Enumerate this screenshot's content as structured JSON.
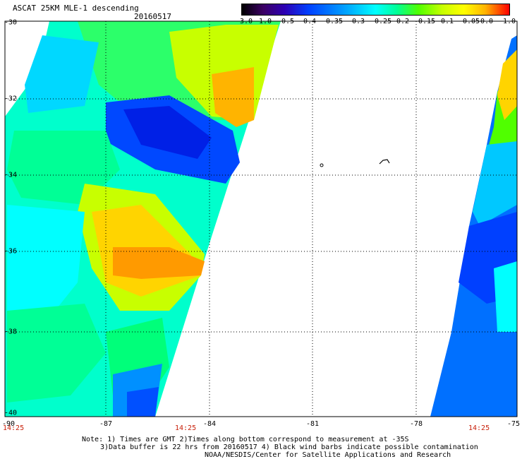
{
  "header": {
    "title": "ASCAT 25KM MLE-1 descending",
    "date": "20160517"
  },
  "colorbar": {
    "labels": [
      "-3.0",
      "-1.0",
      "-0.5",
      "-0.4",
      "-0.35",
      "-0.3",
      "-0.25",
      "-0.2",
      "-0.15",
      "-0.1",
      "-0.05",
      "0.0",
      "1.0"
    ],
    "colors": [
      "#000000",
      "#3b0064",
      "#2d00b4",
      "#0040ff",
      "#0078ff",
      "#00b4ff",
      "#00ffff",
      "#00ff96",
      "#50ff00",
      "#c8ff00",
      "#ffff00",
      "#ffb400",
      "#ff5a00",
      "#ff0000"
    ]
  },
  "axes": {
    "y_labels": [
      "-30",
      "-32",
      "-34",
      "-36",
      "-38",
      "-40"
    ],
    "x_labels": [
      "-90",
      "-87",
      "-84",
      "-81",
      "-78",
      "-75"
    ],
    "time_labels": [
      "14:25",
      "14:25",
      "14:25"
    ]
  },
  "notes": {
    "line1": "Note: 1) Times are GMT 2)Times along bottom correspond to measurement at -35S",
    "line2": "3)Data buffer is 22 hrs from 20160517 4) Black wind barbs indicate possible contamination",
    "line3": "NOAA/NESDIS/Center for Satellite Applications and Research"
  }
}
